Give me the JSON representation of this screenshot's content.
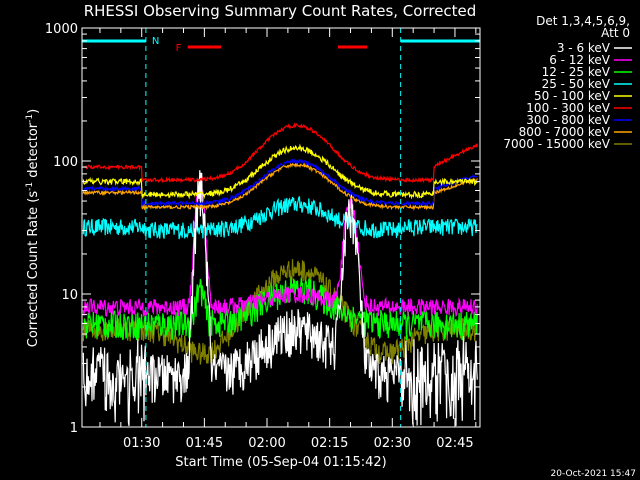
{
  "chart_data": {
    "type": "line",
    "title": "RHESSI Observing Summary Count Rates, Corrected",
    "xlabel": "Start Time (05-Sep-04 01:15:42)",
    "ylabel_main": "Corrected Count Rate (s",
    "ylabel_sup1": "-1",
    "ylabel_mid": " detector",
    "ylabel_sup2": "-1",
    "ylabel_end": ")",
    "yscale": "log",
    "ylim": [
      1,
      1000
    ],
    "xlim_min": [
      15.7,
      111
    ],
    "yticks": [
      {
        "value": 1,
        "label": "1"
      },
      {
        "value": 10,
        "label": "10"
      },
      {
        "value": 100,
        "label": "100"
      },
      {
        "value": 1000,
        "label": "1000"
      }
    ],
    "xticks": [
      {
        "value": 30,
        "label": "01:30"
      },
      {
        "value": 45,
        "label": "01:45"
      },
      {
        "value": 60,
        "label": "02:00"
      },
      {
        "value": 75,
        "label": "02:15"
      },
      {
        "value": 90,
        "label": "02:30"
      },
      {
        "value": 105,
        "label": "02:45"
      }
    ],
    "legend_header": [
      "Det 1,3,4,5,6,9,",
      "Att 0"
    ],
    "legend_placement": "right",
    "series": [
      {
        "name": "3 - 6 keV",
        "color": "#ffffff"
      },
      {
        "name": "6 - 12 keV",
        "color": "#ff00ff"
      },
      {
        "name": "12 - 25 keV",
        "color": "#00ff00"
      },
      {
        "name": "25 - 50 keV",
        "color": "#00ffff"
      },
      {
        "name": "50 - 100 keV",
        "color": "#ffff00"
      },
      {
        "name": "100 - 300 keV",
        "color": "#ff0000"
      },
      {
        "name": "300 - 800 keV",
        "color": "#0000ff"
      },
      {
        "name": "800 - 7000 keV",
        "color": "#ffa500"
      },
      {
        "name": "7000 - 15000 keV",
        "color": "#808000"
      }
    ],
    "night_bars": [
      [
        15.7,
        31
      ],
      [
        92,
        111
      ]
    ],
    "night_label": "N",
    "flare_label": "F",
    "flare_bars": [
      [
        41,
        49
      ],
      [
        77,
        84
      ]
    ],
    "saa_lines": [
      31,
      92,
      111
    ]
  },
  "footer_timestamp": "20-Oct-2021 15:47"
}
